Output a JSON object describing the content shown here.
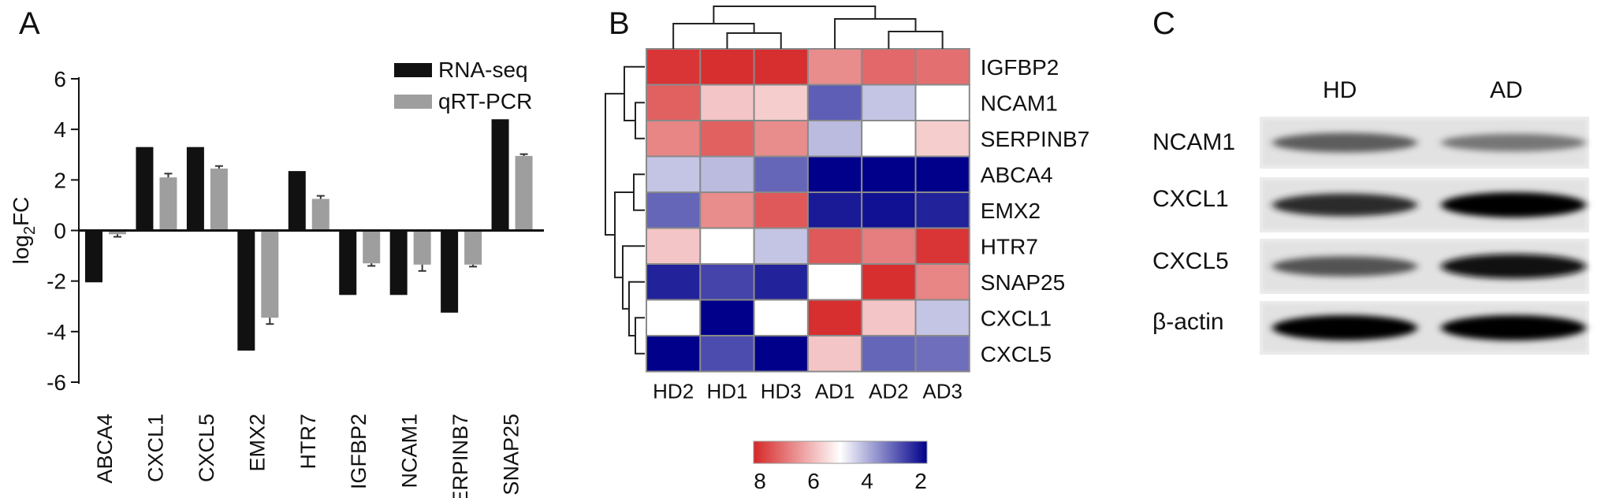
{
  "panels": {
    "a": "A",
    "b": "B",
    "c": "C"
  },
  "chart_data": [
    {
      "type": "bar",
      "panel": "A",
      "categories": [
        "ABCA4",
        "CXCL1",
        "CXCL5",
        "EMX2",
        "HTR7",
        "IGFBP2",
        "NCAM1",
        "SERPINB7",
        "SNAP25"
      ],
      "series": [
        {
          "name": "RNA-seq",
          "color": "#111111",
          "values": [
            -2.05,
            3.3,
            3.3,
            -4.75,
            2.35,
            -2.55,
            -2.55,
            -3.25,
            4.4
          ],
          "errors": [
            0,
            0,
            0,
            0,
            0,
            0,
            0,
            0,
            0
          ]
        },
        {
          "name": "qRT-PCR",
          "color": "#9e9e9e",
          "values": [
            -0.15,
            2.1,
            2.45,
            -3.45,
            1.25,
            -1.3,
            -1.35,
            -1.35,
            2.95
          ],
          "errors": [
            0.1,
            0.15,
            0.1,
            0.25,
            0.12,
            0.1,
            0.25,
            0.08,
            0.07
          ]
        }
      ],
      "ylabel": "log2FC",
      "ylim": [
        -6,
        6
      ],
      "yticks": [
        6,
        4,
        2,
        0,
        -2,
        -4,
        -6
      ],
      "legend_position": "top-right",
      "grid": false
    },
    {
      "type": "heatmap",
      "panel": "B",
      "rows": [
        "IGFBP2",
        "NCAM1",
        "SERPINB7",
        "ABCA4",
        "EMX2",
        "HTR7",
        "SNAP25",
        "CXCL1",
        "CXCL5"
      ],
      "columns": [
        "HD2",
        "HD1",
        "HD3",
        "AD1",
        "AD2",
        "AD3"
      ],
      "values": [
        [
          7.8,
          7.9,
          7.9,
          6.6,
          7.1,
          7.0
        ],
        [
          7.2,
          5.8,
          5.7,
          3.1,
          4.3,
          5.0
        ],
        [
          6.7,
          7.2,
          6.6,
          4.2,
          5.0,
          5.7
        ],
        [
          4.3,
          4.2,
          3.2,
          2.0,
          2.0,
          2.0
        ],
        [
          3.2,
          6.6,
          7.3,
          2.3,
          2.2,
          2.4
        ],
        [
          5.8,
          5.0,
          4.3,
          7.3,
          6.8,
          7.8
        ],
        [
          2.4,
          2.8,
          2.4,
          5.0,
          7.9,
          6.7
        ],
        [
          5.0,
          2.0,
          5.0,
          7.9,
          5.8,
          4.3
        ],
        [
          2.0,
          2.9,
          2.0,
          5.8,
          3.2,
          3.3
        ]
      ],
      "colorbar": {
        "ticks": [
          "8",
          "6",
          "4",
          "2"
        ],
        "range": [
          8,
          2
        ],
        "high_color": "#d62728",
        "mid_color": "#ffffff",
        "low_color": "#00008b"
      }
    }
  ],
  "blot": {
    "columns": [
      "HD",
      "AD"
    ],
    "rows": [
      {
        "label": "NCAM1",
        "hd_intensity": 0.55,
        "ad_intensity": 0.4
      },
      {
        "label": "CXCL1",
        "hd_intensity": 0.8,
        "ad_intensity": 1.0
      },
      {
        "label": "CXCL5",
        "hd_intensity": 0.6,
        "ad_intensity": 0.95
      },
      {
        "label": "β-actin",
        "hd_intensity": 1.0,
        "ad_intensity": 1.0
      }
    ]
  }
}
